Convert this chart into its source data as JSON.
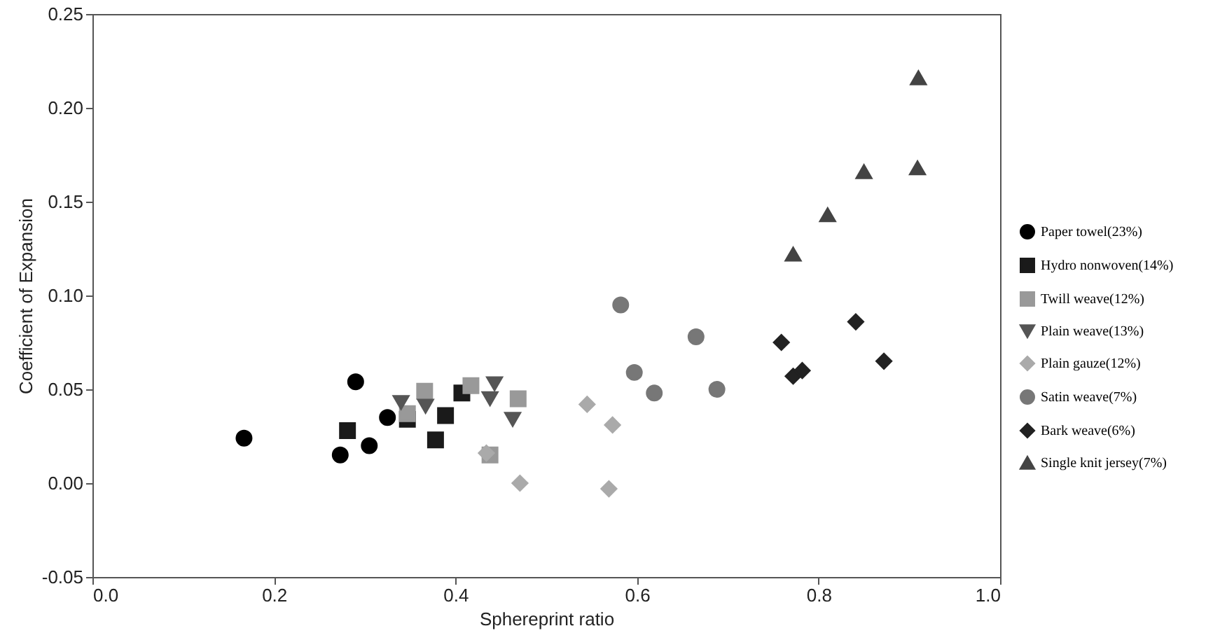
{
  "chart_data": {
    "type": "scatter",
    "xlabel": "Sphereprint ratio",
    "ylabel": "Coefficient of Expansion",
    "xlim": [
      0,
      1
    ],
    "xticks": [
      {
        "value": 0,
        "label": "0.0"
      },
      {
        "value": 0.2,
        "label": "0.2"
      },
      {
        "value": 0.4,
        "label": "0.4"
      },
      {
        "value": 0.6,
        "label": "0.6"
      },
      {
        "value": 0.8,
        "label": "0.8"
      },
      {
        "value": 1,
        "label": "1.0"
      }
    ],
    "ylim": [
      -0.05,
      0.25
    ],
    "yticks": [
      {
        "value": -0.05,
        "label": "-0.05"
      },
      {
        "value": 0,
        "label": "0.00"
      },
      {
        "value": 0.05,
        "label": "0.05"
      },
      {
        "value": 0.1,
        "label": "0.10"
      },
      {
        "value": 0.15,
        "label": "0.15"
      },
      {
        "value": 0.2,
        "label": "0.20"
      },
      {
        "value": 0.25,
        "label": "0.25"
      }
    ],
    "grid": false,
    "legend": "right",
    "series": [
      {
        "name": "Paper towel(23%)",
        "color": "#000000",
        "marker": "circle",
        "x": [
          0.167,
          0.273,
          0.29,
          0.305,
          0.325
        ],
        "values": [
          0.024,
          0.015,
          0.054,
          0.02,
          0.035
        ]
      },
      {
        "name": "Hydro nonwoven(14%)",
        "color": "#1a1a1a",
        "marker": "square",
        "x": [
          0.281,
          0.347,
          0.389,
          0.378,
          0.407
        ],
        "values": [
          0.028,
          0.034,
          0.036,
          0.023,
          0.048
        ]
      },
      {
        "name": "Twill weave(12%)",
        "color": "#999999",
        "marker": "square",
        "x": [
          0.366,
          0.417,
          0.469,
          0.438,
          0.347
        ],
        "values": [
          0.049,
          0.052,
          0.045,
          0.015,
          0.037
        ]
      },
      {
        "name": "Plain weave(13%)",
        "color": "#555555",
        "marker": "triangle-down",
        "x": [
          0.34,
          0.367,
          0.443,
          0.438,
          0.463
        ],
        "values": [
          0.043,
          0.041,
          0.053,
          0.045,
          0.034
        ]
      },
      {
        "name": "Plain gauze(12%)",
        "color": "#aaaaaa",
        "marker": "diamond",
        "x": [
          0.434,
          0.471,
          0.545,
          0.573,
          0.569
        ],
        "values": [
          0.016,
          0.0,
          0.042,
          0.031,
          -0.003
        ]
      },
      {
        "name": "Satin weave(7%)",
        "color": "#777777",
        "marker": "circle",
        "x": [
          0.582,
          0.665,
          0.597,
          0.619,
          0.688
        ],
        "values": [
          0.095,
          0.078,
          0.059,
          0.048,
          0.05
        ]
      },
      {
        "name": "Bark weave(6%)",
        "color": "#222222",
        "marker": "diamond",
        "x": [
          0.759,
          0.841,
          0.872,
          0.772,
          0.782
        ],
        "values": [
          0.075,
          0.086,
          0.065,
          0.057,
          0.06
        ]
      },
      {
        "name": "Single knit jersey(7%)",
        "color": "#444444",
        "marker": "triangle",
        "x": [
          0.91,
          0.909,
          0.85,
          0.81,
          0.772
        ],
        "values": [
          0.216,
          0.168,
          0.166,
          0.143,
          0.122
        ]
      }
    ]
  }
}
